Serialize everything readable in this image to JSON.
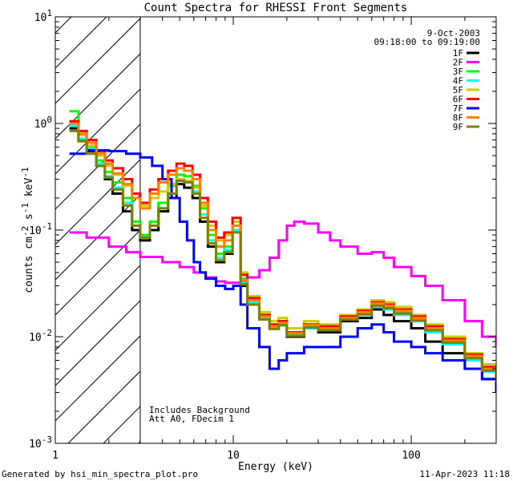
{
  "chart_data": {
    "type": "line",
    "title": "Count Spectra for RHESSI Front Segments",
    "xlabel": "Energy (keV)",
    "ylabel": "counts cm",
    "ylabel_sup1": "-2",
    "ylabel_mid": " s",
    "ylabel_sup2": "-1",
    "ylabel_end": " keV",
    "ylabel_sup3": "-1",
    "xscale": "log",
    "yscale": "log",
    "xlim": [
      1,
      300
    ],
    "ylim": [
      0.001,
      10
    ],
    "x_ticks": [
      {
        "value": 1,
        "label": "1"
      },
      {
        "value": 10,
        "label": "10"
      },
      {
        "value": 100,
        "label": "100"
      }
    ],
    "y_ticks": [
      {
        "value": 0.001,
        "base": "10",
        "exp": "-3"
      },
      {
        "value": 0.01,
        "base": "10",
        "exp": "-2"
      },
      {
        "value": 0.1,
        "base": "10",
        "exp": "-1"
      },
      {
        "value": 1,
        "base": "10",
        "exp": "0"
      },
      {
        "value": 10,
        "base": "10",
        "exp": "1"
      }
    ],
    "shaded_region": [
      1,
      3
    ],
    "date": "9-Oct-2003",
    "time_range": "09:18:00 to 09:19:00",
    "annotation_line1": "Includes Background",
    "annotation_line2": "Att A0, FDecim 1",
    "footer_left": "Generated by hsi_min_spectra_plot.pro",
    "footer_right": "11-Apr-2023 11:18",
    "series": [
      {
        "name": "1F",
        "color": "#000000",
        "x": [
          1.2,
          1.35,
          1.5,
          1.7,
          1.9,
          2.1,
          2.4,
          2.7,
          3.0,
          3.4,
          3.8,
          4.3,
          4.8,
          5.3,
          5.9,
          6.5,
          7.2,
          8.0,
          8.9,
          9.9,
          11,
          12,
          14,
          16,
          18,
          20,
          25,
          30,
          40,
          50,
          60,
          70,
          80,
          100,
          120,
          150,
          200,
          250,
          300
        ],
        "y": [
          0.9,
          0.7,
          0.55,
          0.4,
          0.3,
          0.22,
          0.15,
          0.1,
          0.08,
          0.1,
          0.15,
          0.2,
          0.27,
          0.25,
          0.2,
          0.12,
          0.07,
          0.05,
          0.06,
          0.1,
          0.03,
          0.02,
          0.015,
          0.012,
          0.013,
          0.01,
          0.012,
          0.011,
          0.014,
          0.015,
          0.018,
          0.016,
          0.014,
          0.012,
          0.009,
          0.007,
          0.005,
          0.004,
          0.003
        ]
      },
      {
        "name": "2F",
        "color": "#ff00ff",
        "x": [
          1.2,
          1.5,
          2,
          2.5,
          3,
          4,
          5,
          6,
          7,
          8,
          9,
          10,
          11,
          12,
          14,
          16,
          18,
          20,
          22,
          25,
          30,
          35,
          40,
          50,
          60,
          70,
          80,
          100,
          120,
          150,
          200,
          250,
          300
        ],
        "y": [
          0.095,
          0.085,
          0.07,
          0.062,
          0.056,
          0.05,
          0.045,
          0.04,
          0.036,
          0.033,
          0.032,
          0.032,
          0.033,
          0.036,
          0.042,
          0.055,
          0.08,
          0.11,
          0.12,
          0.115,
          0.095,
          0.08,
          0.07,
          0.06,
          0.062,
          0.055,
          0.045,
          0.037,
          0.03,
          0.022,
          0.014,
          0.01,
          0.008
        ]
      },
      {
        "name": "3F",
        "color": "#00ff00",
        "x": [
          1.2,
          1.35,
          1.5,
          1.7,
          1.9,
          2.1,
          2.4,
          2.7,
          3.0,
          3.4,
          3.8,
          4.3,
          4.8,
          5.3,
          5.9,
          6.5,
          7.2,
          8.0,
          8.9,
          9.9,
          11,
          12,
          14,
          16,
          18,
          20,
          25,
          30,
          40,
          50,
          60,
          70,
          80,
          100,
          120,
          150,
          200,
          250,
          300
        ],
        "y": [
          1.3,
          0.8,
          0.6,
          0.45,
          0.35,
          0.28,
          0.2,
          0.12,
          0.09,
          0.12,
          0.18,
          0.26,
          0.33,
          0.32,
          0.26,
          0.16,
          0.09,
          0.06,
          0.07,
          0.11,
          0.035,
          0.022,
          0.016,
          0.013,
          0.014,
          0.011,
          0.013,
          0.012,
          0.015,
          0.017,
          0.02,
          0.019,
          0.017,
          0.015,
          0.012,
          0.009,
          0.0065,
          0.005,
          0.004
        ]
      },
      {
        "name": "4F",
        "color": "#00ffff",
        "x": [
          1.2,
          1.35,
          1.5,
          1.7,
          1.9,
          2.1,
          2.4,
          2.7,
          3.0,
          3.4,
          3.8,
          4.3,
          4.8,
          5.3,
          5.9,
          6.5,
          7.2,
          8.0,
          8.9,
          9.9,
          11,
          12,
          14,
          16,
          18,
          20,
          25,
          30,
          40,
          50,
          60,
          70,
          80,
          100,
          120,
          150,
          200,
          250,
          300
        ],
        "y": [
          0.95,
          0.72,
          0.58,
          0.42,
          0.32,
          0.25,
          0.18,
          0.11,
          0.085,
          0.11,
          0.16,
          0.22,
          0.3,
          0.29,
          0.23,
          0.14,
          0.08,
          0.055,
          0.065,
          0.1,
          0.032,
          0.021,
          0.015,
          0.012,
          0.013,
          0.0105,
          0.012,
          0.0115,
          0.0145,
          0.016,
          0.019,
          0.018,
          0.016,
          0.014,
          0.011,
          0.0085,
          0.006,
          0.0047,
          0.0037
        ]
      },
      {
        "name": "5F",
        "color": "#cccc00",
        "x": [
          1.2,
          1.35,
          1.5,
          1.7,
          1.9,
          2.1,
          2.4,
          2.7,
          3.0,
          3.4,
          3.8,
          4.3,
          4.8,
          5.3,
          5.9,
          6.5,
          7.2,
          8.0,
          8.9,
          9.9,
          11,
          12,
          14,
          16,
          18,
          20,
          25,
          30,
          40,
          50,
          60,
          70,
          80,
          100,
          120,
          150,
          200,
          250,
          300
        ],
        "y": [
          1.0,
          0.78,
          0.62,
          0.5,
          0.4,
          0.33,
          0.26,
          0.2,
          0.17,
          0.2,
          0.23,
          0.27,
          0.3,
          0.29,
          0.25,
          0.17,
          0.11,
          0.08,
          0.09,
          0.12,
          0.04,
          0.024,
          0.017,
          0.014,
          0.015,
          0.012,
          0.014,
          0.013,
          0.016,
          0.018,
          0.022,
          0.021,
          0.019,
          0.016,
          0.013,
          0.01,
          0.007,
          0.0055,
          0.0045
        ]
      },
      {
        "name": "6F",
        "color": "#ff0000",
        "x": [
          1.2,
          1.35,
          1.5,
          1.7,
          1.9,
          2.1,
          2.4,
          2.7,
          3.0,
          3.4,
          3.8,
          4.3,
          4.8,
          5.3,
          5.9,
          6.5,
          7.2,
          8.0,
          8.9,
          9.9,
          11,
          12,
          14,
          16,
          18,
          20,
          25,
          30,
          40,
          50,
          60,
          70,
          80,
          100,
          120,
          150,
          200,
          250,
          300
        ],
        "y": [
          1.05,
          0.85,
          0.7,
          0.55,
          0.45,
          0.38,
          0.3,
          0.22,
          0.18,
          0.24,
          0.3,
          0.36,
          0.42,
          0.4,
          0.33,
          0.2,
          0.12,
          0.085,
          0.095,
          0.13,
          0.038,
          0.023,
          0.016,
          0.013,
          0.014,
          0.011,
          0.013,
          0.0125,
          0.0155,
          0.0175,
          0.021,
          0.02,
          0.018,
          0.0155,
          0.0125,
          0.0095,
          0.0068,
          0.0052,
          0.0042
        ]
      },
      {
        "name": "7F",
        "color": "#0000ff",
        "x": [
          1.2,
          1.5,
          2,
          2.5,
          3,
          3.5,
          4,
          4.5,
          5,
          5.5,
          6,
          6.5,
          7,
          8,
          9,
          10,
          11,
          12,
          14,
          16,
          18,
          20,
          25,
          30,
          40,
          50,
          60,
          70,
          80,
          100,
          120,
          150,
          200,
          250,
          300
        ],
        "y": [
          0.52,
          0.56,
          0.55,
          0.52,
          0.48,
          0.4,
          0.3,
          0.2,
          0.12,
          0.08,
          0.05,
          0.04,
          0.035,
          0.03,
          0.028,
          0.03,
          0.02,
          0.012,
          0.008,
          0.005,
          0.006,
          0.007,
          0.008,
          0.008,
          0.01,
          0.012,
          0.013,
          0.011,
          0.009,
          0.008,
          0.007,
          0.006,
          0.005,
          0.004,
          0.003
        ]
      },
      {
        "name": "8F",
        "color": "#ff8000",
        "x": [
          1.2,
          1.35,
          1.5,
          1.7,
          1.9,
          2.1,
          2.4,
          2.7,
          3.0,
          3.4,
          3.8,
          4.3,
          4.8,
          5.3,
          5.9,
          6.5,
          7.2,
          8.0,
          8.9,
          9.9,
          11,
          12,
          14,
          16,
          18,
          20,
          25,
          30,
          40,
          50,
          60,
          70,
          80,
          100,
          120,
          150,
          200,
          250,
          300
        ],
        "y": [
          1.0,
          0.8,
          0.66,
          0.52,
          0.42,
          0.34,
          0.27,
          0.2,
          0.16,
          0.22,
          0.28,
          0.33,
          0.38,
          0.36,
          0.3,
          0.18,
          0.1,
          0.07,
          0.08,
          0.11,
          0.034,
          0.022,
          0.0155,
          0.0125,
          0.0135,
          0.0108,
          0.0128,
          0.012,
          0.015,
          0.017,
          0.0205,
          0.0195,
          0.0175,
          0.015,
          0.012,
          0.0092,
          0.0066,
          0.005,
          0.004
        ]
      },
      {
        "name": "9F",
        "color": "#808000",
        "x": [
          1.2,
          1.35,
          1.5,
          1.7,
          1.9,
          2.1,
          2.4,
          2.7,
          3.0,
          3.4,
          3.8,
          4.3,
          4.8,
          5.3,
          5.9,
          6.5,
          7.2,
          8.0,
          8.9,
          9.9,
          11,
          12,
          14,
          16,
          18,
          20,
          25,
          30,
          40,
          50,
          60,
          70,
          80,
          100,
          120,
          150,
          200,
          250,
          300
        ],
        "y": [
          0.85,
          0.68,
          0.52,
          0.4,
          0.31,
          0.24,
          0.17,
          0.11,
          0.085,
          0.11,
          0.16,
          0.22,
          0.29,
          0.28,
          0.22,
          0.13,
          0.075,
          0.052,
          0.062,
          0.095,
          0.031,
          0.02,
          0.0145,
          0.0118,
          0.0128,
          0.0102,
          0.0122,
          0.0115,
          0.0145,
          0.0162,
          0.0195,
          0.0185,
          0.0165,
          0.0142,
          0.0115,
          0.0088,
          0.0063,
          0.0048,
          0.0038
        ]
      }
    ]
  }
}
